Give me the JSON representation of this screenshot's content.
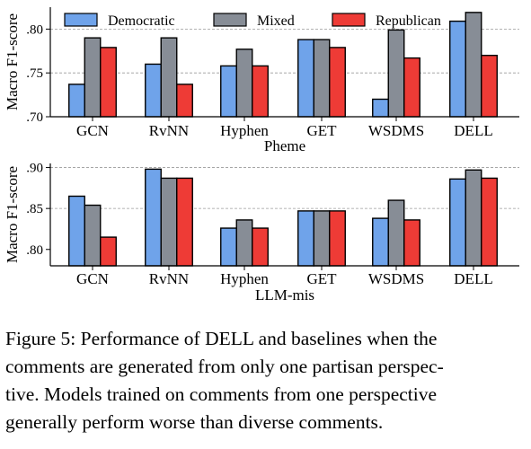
{
  "chart_data": [
    {
      "type": "bar",
      "categories": [
        "GCN",
        "RvNN",
        "Hyphen",
        "GET",
        "WSDMS",
        "DELL"
      ],
      "series": [
        {
          "name": "Democratic",
          "values": [
            0.737,
            0.76,
            0.758,
            0.788,
            0.72,
            0.809
          ]
        },
        {
          "name": "Mixed",
          "values": [
            0.79,
            0.79,
            0.777,
            0.788,
            0.799,
            0.819
          ]
        },
        {
          "name": "Republican",
          "values": [
            0.779,
            0.737,
            0.758,
            0.779,
            0.767,
            0.77
          ]
        }
      ],
      "xlabel": "Pheme",
      "ylabel": "Macro F1-score",
      "ylim": [
        0.7,
        0.825
      ],
      "yticks": [
        0.7,
        0.75,
        0.8
      ],
      "ytick_labels": [
        ".70",
        ".75",
        ".80"
      ],
      "grid": true,
      "legend": "top"
    },
    {
      "type": "bar",
      "categories": [
        "GCN",
        "RvNN",
        "Hyphen",
        "GET",
        "WSDMS",
        "DELL"
      ],
      "series": [
        {
          "name": "Democratic",
          "values": [
            0.865,
            0.898,
            0.826,
            0.847,
            0.838,
            0.886
          ]
        },
        {
          "name": "Mixed",
          "values": [
            0.854,
            0.887,
            0.836,
            0.847,
            0.86,
            0.897
          ]
        },
        {
          "name": "Republican",
          "values": [
            0.815,
            0.887,
            0.826,
            0.847,
            0.836,
            0.887
          ]
        }
      ],
      "xlabel": "LLM-mis",
      "ylabel": "Macro F1-score",
      "ylim": [
        0.78,
        0.905
      ],
      "yticks": [
        0.8,
        0.85,
        0.9
      ],
      "ytick_labels": [
        ".80",
        ".85",
        ".90"
      ],
      "grid": true,
      "legend": "none"
    }
  ],
  "colors": {
    "Democratic": "#6fa3ea",
    "Mixed": "#878d96",
    "Republican": "#ee3b36"
  },
  "caption": {
    "lines": [
      "Figure 5: Performance of DELL and baselines when the",
      "comments are generated from only one partisan perspec-",
      "tive. Models trained on comments from one perspective",
      "generally perform worse than diverse comments."
    ]
  }
}
